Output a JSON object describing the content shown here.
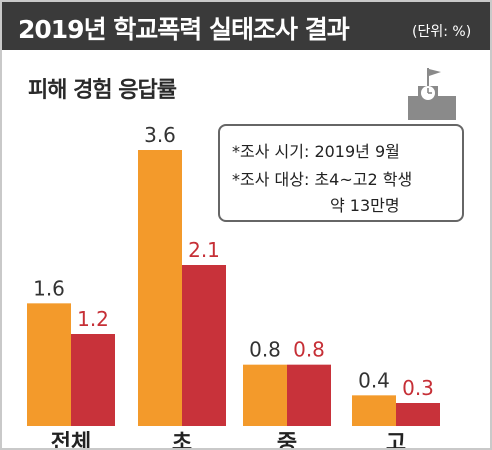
{
  "header": {
    "title": "2019년 학교폭력 실태조사 결과",
    "unit": "(단위: %)"
  },
  "subtitle": "피해 경험 응답률",
  "info": {
    "lines": [
      "*조사 시기: 2019년 9월",
      "*조사 대상: 초4~고2 학생",
      "약 13만명"
    ]
  },
  "icons": {
    "school": "school-building-icon"
  },
  "colors": {
    "header_bg": "#3a3a3a",
    "series_1": "#f39a2b",
    "series_2": "#c8323a",
    "label_2": "#c62f36"
  },
  "chart_data": {
    "type": "bar",
    "categories": [
      "전체",
      "초",
      "중",
      "고"
    ],
    "series": [
      {
        "values": [
          1.6,
          3.6,
          0.8,
          0.4
        ]
      },
      {
        "values": [
          1.2,
          2.1,
          0.8,
          0.3
        ]
      }
    ],
    "ylim": [
      0,
      3.6
    ],
    "grid": false,
    "legend": "none"
  }
}
